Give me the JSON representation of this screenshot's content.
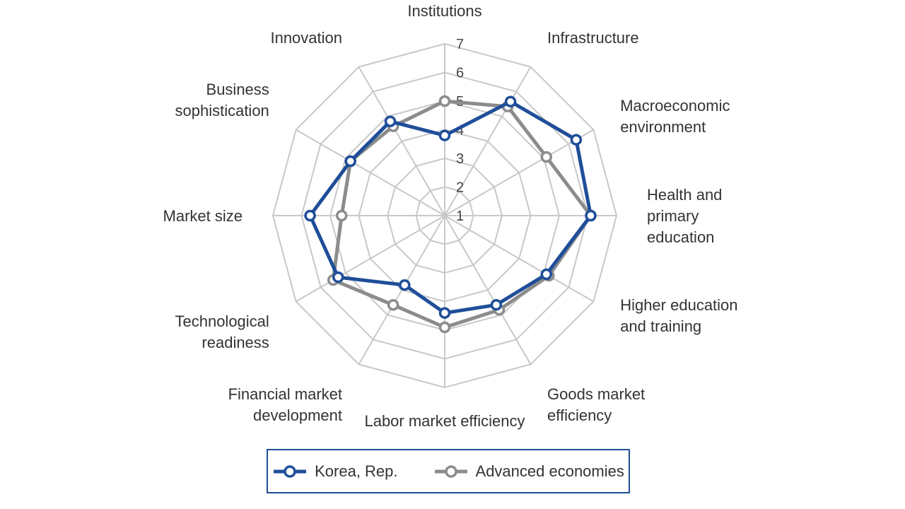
{
  "colors": {
    "korea": "#1f4e99",
    "advanced": "#8c8c8c",
    "grid": "#c8c8c8"
  },
  "chart_data": {
    "type": "radar",
    "categories": [
      "Institutions",
      "Infrastructure",
      "Macroeconomic\nenvironment",
      "Health and\nprimary\neducation",
      "Higher education\nand training",
      "Goods market\nefficiency",
      "Labor market efficiency",
      "Financial market\ndevelopment",
      "Technological\nreadiness",
      "Market size",
      "Business\nsophistication",
      "Innovation"
    ],
    "rlim": [
      1,
      7
    ],
    "ticks": [
      "1",
      "2",
      "3",
      "4",
      "5",
      "6",
      "7"
    ],
    "grid": true,
    "legend_position": "bottom",
    "series": [
      {
        "name": "Korea, Rep.",
        "values": [
          3.8,
          5.6,
          6.3,
          6.1,
          5.1,
          4.6,
          4.4,
          3.8,
          5.3,
          5.7,
          4.8,
          4.8
        ]
      },
      {
        "name": "Advanced economies",
        "values": [
          5.0,
          5.4,
          5.1,
          6.1,
          5.2,
          4.8,
          4.9,
          4.6,
          5.5,
          4.6,
          4.8,
          4.6
        ]
      }
    ]
  }
}
